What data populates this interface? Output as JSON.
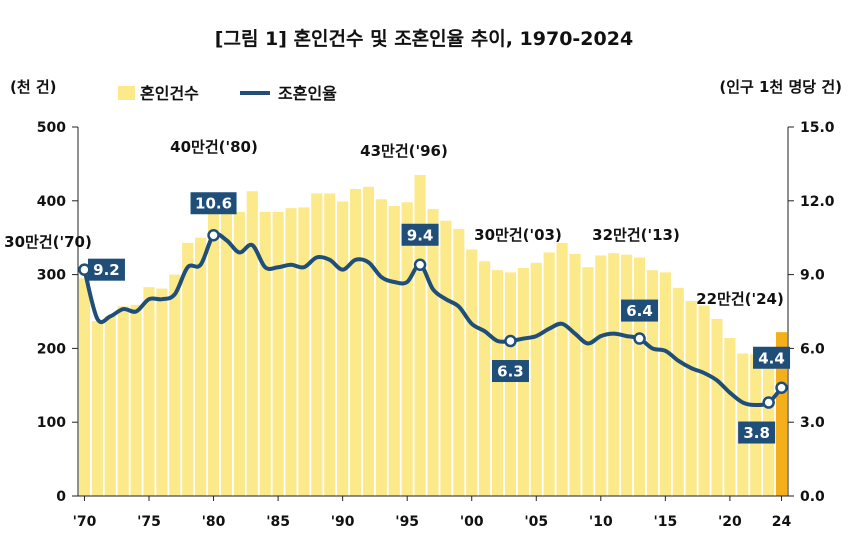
{
  "chart_data": {
    "type": "bar+line",
    "title": "[그림 1] 혼인건수 및 조혼인율 추이, 1970-2024",
    "left_unit": "(천 건)",
    "right_unit": "(인구 1천 명당 건)",
    "ylim_left": [
      0,
      500
    ],
    "ylim_right": [
      0.0,
      15.0
    ],
    "left_ticks": [
      "0",
      "100",
      "200",
      "300",
      "400",
      "500"
    ],
    "right_ticks": [
      "0.0",
      "3.0",
      "6.0",
      "9.0",
      "12.0",
      "15.0"
    ],
    "x_ticks": [
      "'70",
      "'75",
      "'80",
      "'85",
      "'90",
      "'95",
      "'00",
      "'05",
      "'10",
      "'15",
      "'20",
      "24"
    ],
    "x": [
      1970,
      1971,
      1972,
      1973,
      1974,
      1975,
      1976,
      1977,
      1978,
      1979,
      1980,
      1981,
      1982,
      1983,
      1984,
      1985,
      1986,
      1987,
      1988,
      1989,
      1990,
      1991,
      1992,
      1993,
      1994,
      1995,
      1996,
      1997,
      1998,
      1999,
      2000,
      2001,
      2002,
      2003,
      2004,
      2005,
      2006,
      2007,
      2008,
      2009,
      2010,
      2011,
      2012,
      2013,
      2014,
      2015,
      2016,
      2017,
      2018,
      2019,
      2020,
      2021,
      2022,
      2023,
      2024
    ],
    "series": [
      {
        "name": "혼인건수",
        "kind": "bar",
        "axis": "left",
        "color": "#FBE98A",
        "highlight_color": "#F5AF1B",
        "values": [
          295,
          237,
          244,
          257,
          259,
          283,
          281,
          300,
          343,
          350,
          403,
          407,
          385,
          413,
          385,
          385,
          390,
          391,
          410,
          410,
          399,
          416,
          419,
          402,
          393,
          398,
          435,
          389,
          373,
          362,
          334,
          318,
          306,
          303,
          309,
          316,
          330,
          343,
          328,
          310,
          326,
          329,
          327,
          323,
          306,
          303,
          282,
          264,
          258,
          240,
          214,
          193,
          192,
          194,
          222
        ]
      },
      {
        "name": "조혼인율",
        "kind": "line",
        "axis": "right",
        "color": "#1F4E79",
        "values": [
          9.2,
          7.2,
          7.3,
          7.6,
          7.5,
          8.0,
          8.0,
          8.2,
          9.3,
          9.4,
          10.6,
          10.4,
          9.9,
          10.2,
          9.3,
          9.3,
          9.4,
          9.3,
          9.7,
          9.6,
          9.2,
          9.6,
          9.5,
          8.9,
          8.7,
          8.7,
          9.4,
          8.4,
          8.0,
          7.7,
          7.0,
          6.7,
          6.3,
          6.3,
          6.4,
          6.5,
          6.8,
          7.0,
          6.6,
          6.2,
          6.5,
          6.6,
          6.5,
          6.4,
          6.0,
          5.9,
          5.5,
          5.2,
          5.0,
          4.7,
          4.2,
          3.8,
          3.7,
          3.8,
          4.4
        ]
      }
    ],
    "rate_labels": [
      {
        "x": 1970,
        "text": "9.2"
      },
      {
        "x": 1980,
        "text": "10.6"
      },
      {
        "x": 1996,
        "text": "9.4"
      },
      {
        "x": 2003,
        "text": "6.3"
      },
      {
        "x": 2013,
        "text": "6.4"
      },
      {
        "x": 2023,
        "text": "3.8"
      },
      {
        "x": 2024,
        "text": "4.4"
      }
    ],
    "annotations": [
      {
        "x": 1970,
        "text": "30만건('70)"
      },
      {
        "x": 1980,
        "text": "40만건('80)"
      },
      {
        "x": 1996,
        "text": "43만건('96)"
      },
      {
        "x": 2003,
        "text": "30만건('03)"
      },
      {
        "x": 2013,
        "text": "32만건('13)"
      },
      {
        "x": 2024,
        "text": "22만건('24)"
      }
    ],
    "legend_position": "top-left",
    "grid": false
  }
}
